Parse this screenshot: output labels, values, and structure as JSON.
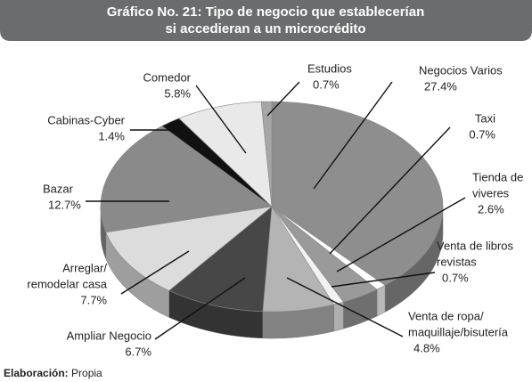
{
  "chart_data": {
    "type": "pie",
    "title": [
      "Gráfico No. 21: Tipo de negocio que establecerían",
      "si accedieran a un microcrédito"
    ],
    "categories": [
      [
        "Negocios Varios"
      ],
      [
        "Taxi"
      ],
      [
        "Tienda de",
        "viveres"
      ],
      [
        "Venta de libros",
        "revistas"
      ],
      [
        "Venta de ropa/",
        "maquillaje/bisutería"
      ],
      [
        "Ampliar Negocio"
      ],
      [
        "Arreglar/",
        "remodelar casa"
      ],
      [
        "Bazar"
      ],
      [
        "Cabinas-Cyber"
      ],
      [
        "Comedor"
      ],
      [
        "Estudios"
      ]
    ],
    "values": [
      27.4,
      0.7,
      2.6,
      0.7,
      4.8,
      6.7,
      7.7,
      12.7,
      1.4,
      5.8,
      0.7
    ],
    "value_labels": [
      "27.4%",
      "0.7%",
      "2.6%",
      "0.7%",
      "4.8%",
      "6.7%",
      "7.7%",
      "12.7%",
      "1.4%",
      "5.8%",
      "0.7%"
    ],
    "colors": [
      "#8e8e8e",
      "#ffffff",
      "#9a9a9a",
      "#f2f2f2",
      "#b4b4b4",
      "#474747",
      "#dcdcdc",
      "#8a8a8a",
      "#111111",
      "#e9e9e9",
      "#a6a6a6"
    ],
    "source_label": "Elaboración:",
    "source": "Propia"
  }
}
